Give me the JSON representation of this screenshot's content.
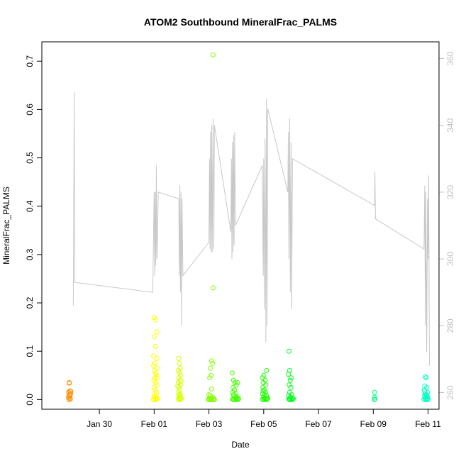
{
  "chart_data": {
    "type": "scatter",
    "title": "ATOM2 Southbound MineralFrac_PALMS",
    "xlabel": "Date",
    "ylabel": "MineralFrac_PALMS",
    "x_ticks": [
      {
        "label": "Jan 30",
        "day": 30
      },
      {
        "label": "Feb 01",
        "day": 32
      },
      {
        "label": "Feb 03",
        "day": 34
      },
      {
        "label": "Feb 05",
        "day": 36
      },
      {
        "label": "Feb 07",
        "day": 38
      },
      {
        "label": "Feb 09",
        "day": 40
      },
      {
        "label": "Feb 11",
        "day": 42
      }
    ],
    "xlim": [
      27.9,
      42.4
    ],
    "ylim": [
      -0.02,
      0.74
    ],
    "y_ticks": [
      0.0,
      0.1,
      0.2,
      0.3,
      0.4,
      0.5,
      0.6,
      0.7
    ],
    "y_tick_labels": [
      "0.0",
      "0.1",
      "0.2",
      "0.3",
      "0.4",
      "0.5",
      "0.6",
      "0.7"
    ],
    "y2lim": [
      255,
      365
    ],
    "y2_ticks": [
      260,
      280,
      300,
      320,
      340,
      360
    ],
    "y2_tick_labels": [
      "260",
      "280",
      "300",
      "320",
      "340",
      "360"
    ],
    "y2_color": "#c0c0c0",
    "line_color": "#c8c8c8",
    "grid": false,
    "legend": "none",
    "series": [
      {
        "color": "#ff8c00",
        "points": [
          [
            28.9,
            0.035
          ],
          [
            28.9,
            0.034
          ],
          [
            28.92,
            0.018
          ],
          [
            28.88,
            0.015
          ],
          [
            28.95,
            0.012
          ],
          [
            28.9,
            0.01
          ],
          [
            28.93,
            0.008
          ],
          [
            28.87,
            0.005
          ],
          [
            28.91,
            0.003
          ],
          [
            28.94,
            0.001
          ],
          [
            28.89,
            0.0
          ],
          [
            28.96,
            0.017
          ]
        ]
      },
      {
        "color": "#ffff00",
        "points": [
          [
            32.0,
            0.17
          ],
          [
            32.05,
            0.165
          ],
          [
            32.1,
            0.14
          ],
          [
            32.0,
            0.13
          ],
          [
            32.05,
            0.11
          ],
          [
            31.98,
            0.09
          ],
          [
            32.1,
            0.085
          ],
          [
            32.02,
            0.075
          ],
          [
            32.12,
            0.065
          ],
          [
            32.0,
            0.06
          ],
          [
            32.08,
            0.05
          ],
          [
            32.03,
            0.045
          ],
          [
            31.99,
            0.04
          ],
          [
            32.06,
            0.035
          ],
          [
            32.1,
            0.03
          ],
          [
            32.0,
            0.025
          ],
          [
            32.04,
            0.02
          ],
          [
            32.09,
            0.015
          ],
          [
            32.02,
            0.012
          ],
          [
            32.07,
            0.008
          ],
          [
            32.0,
            0.005
          ],
          [
            32.05,
            0.003
          ],
          [
            32.1,
            0.001
          ],
          [
            31.97,
            0.0
          ],
          [
            32.03,
            0.0
          ],
          [
            32.08,
            0.0
          ],
          [
            32.12,
            0.002
          ],
          [
            32.06,
            0.055
          ],
          [
            31.98,
            0.07
          ],
          [
            32.11,
            0.045
          ]
        ]
      },
      {
        "color": "#d8ff00",
        "points": [
          [
            32.9,
            0.085
          ],
          [
            32.92,
            0.075
          ],
          [
            32.95,
            0.065
          ],
          [
            32.88,
            0.06
          ],
          [
            32.93,
            0.055
          ],
          [
            32.97,
            0.05
          ],
          [
            32.9,
            0.045
          ],
          [
            32.94,
            0.04
          ],
          [
            32.88,
            0.035
          ],
          [
            32.96,
            0.03
          ],
          [
            32.91,
            0.025
          ],
          [
            32.93,
            0.02
          ],
          [
            32.89,
            0.015
          ],
          [
            32.95,
            0.012
          ],
          [
            32.92,
            0.01
          ],
          [
            32.9,
            0.008
          ],
          [
            32.97,
            0.005
          ],
          [
            32.91,
            0.003
          ],
          [
            32.94,
            0.001
          ],
          [
            32.88,
            0.0
          ],
          [
            32.95,
            0.0
          ],
          [
            32.99,
            0.002
          ],
          [
            32.86,
            0.028
          ],
          [
            32.98,
            0.038
          ]
        ]
      },
      {
        "color": "#80ff00",
        "points": [
          [
            34.15,
            0.713
          ],
          [
            34.15,
            0.231
          ],
          [
            34.1,
            0.08
          ],
          [
            34.13,
            0.075
          ],
          [
            34.05,
            0.065
          ],
          [
            34.08,
            0.05
          ],
          [
            34.03,
            0.045
          ],
          [
            34.1,
            0.022
          ],
          [
            34.0,
            0.01
          ],
          [
            34.05,
            0.008
          ],
          [
            34.12,
            0.005
          ],
          [
            34.02,
            0.003
          ],
          [
            34.08,
            0.001
          ],
          [
            34.0,
            0.0
          ],
          [
            34.04,
            0.0
          ],
          [
            34.1,
            0.0
          ],
          [
            34.15,
            0.0
          ],
          [
            33.98,
            0.0
          ],
          [
            34.2,
            0.0
          ],
          [
            34.18,
            0.002
          ]
        ]
      },
      {
        "color": "#40ff00",
        "points": [
          [
            34.85,
            0.055
          ],
          [
            34.9,
            0.04
          ],
          [
            34.95,
            0.035
          ],
          [
            35.0,
            0.03
          ],
          [
            34.88,
            0.025
          ],
          [
            34.93,
            0.02
          ],
          [
            35.05,
            0.035
          ],
          [
            34.87,
            0.015
          ],
          [
            34.9,
            0.01
          ],
          [
            34.95,
            0.008
          ],
          [
            35.0,
            0.005
          ],
          [
            35.03,
            0.003
          ],
          [
            34.85,
            0.001
          ],
          [
            34.92,
            0.0
          ],
          [
            34.97,
            0.0
          ],
          [
            35.02,
            0.0
          ],
          [
            35.06,
            0.0
          ],
          [
            34.89,
            0.0
          ],
          [
            35.08,
            0.002
          ],
          [
            34.99,
            0.012
          ]
        ]
      },
      {
        "color": "#20ff00",
        "points": [
          [
            36.1,
            0.06
          ],
          [
            36.0,
            0.05
          ],
          [
            35.95,
            0.045
          ],
          [
            36.05,
            0.04
          ],
          [
            35.98,
            0.035
          ],
          [
            36.08,
            0.03
          ],
          [
            35.97,
            0.025
          ],
          [
            36.02,
            0.02
          ],
          [
            36.07,
            0.015
          ],
          [
            35.96,
            0.012
          ],
          [
            36.03,
            0.01
          ],
          [
            36.1,
            0.008
          ],
          [
            36.0,
            0.005
          ],
          [
            36.05,
            0.003
          ],
          [
            36.12,
            0.001
          ],
          [
            35.95,
            0.0
          ],
          [
            36.0,
            0.0
          ],
          [
            36.05,
            0.0
          ],
          [
            36.1,
            0.0
          ],
          [
            36.14,
            0.002
          ],
          [
            35.98,
            0.018
          ]
        ]
      },
      {
        "color": "#00ff20",
        "points": [
          [
            36.92,
            0.1
          ],
          [
            36.95,
            0.06
          ],
          [
            36.9,
            0.052
          ],
          [
            37.0,
            0.045
          ],
          [
            36.97,
            0.04
          ],
          [
            36.93,
            0.03
          ],
          [
            36.99,
            0.025
          ],
          [
            36.95,
            0.015
          ],
          [
            37.02,
            0.01
          ],
          [
            36.9,
            0.008
          ],
          [
            36.97,
            0.005
          ],
          [
            37.05,
            0.003
          ],
          [
            36.92,
            0.001
          ],
          [
            36.96,
            0.0
          ],
          [
            37.0,
            0.0
          ],
          [
            37.04,
            0.0
          ],
          [
            36.94,
            0.0
          ],
          [
            37.08,
            0.002
          ]
        ]
      },
      {
        "color": "#00ff80",
        "points": [
          [
            40.05,
            0.015
          ],
          [
            40.05,
            0.005
          ],
          [
            40.06,
            0.001
          ],
          [
            40.04,
            0.0
          ]
        ]
      },
      {
        "color": "#00ffc0",
        "points": [
          [
            41.9,
            0.047
          ],
          [
            41.93,
            0.045
          ],
          [
            41.88,
            0.028
          ],
          [
            41.95,
            0.025
          ],
          [
            41.86,
            0.02
          ],
          [
            41.98,
            0.015
          ],
          [
            41.9,
            0.012
          ],
          [
            41.92,
            0.01
          ],
          [
            41.87,
            0.008
          ],
          [
            41.96,
            0.006
          ],
          [
            41.89,
            0.004
          ],
          [
            41.94,
            0.002
          ],
          [
            41.91,
            0.001
          ],
          [
            41.85,
            0.0
          ],
          [
            41.92,
            0.0
          ],
          [
            41.97,
            0.0
          ],
          [
            42.0,
            0.0
          ],
          [
            41.99,
            0.005
          ],
          [
            41.88,
            0.017
          ],
          [
            41.95,
            0.009
          ]
        ]
      }
    ],
    "altitude_line": [
      [
        29.05,
        286
      ],
      [
        29.08,
        350
      ],
      [
        29.1,
        293
      ],
      [
        31.95,
        290
      ],
      [
        32.0,
        320
      ],
      [
        32.02,
        295
      ],
      [
        32.04,
        320
      ],
      [
        32.06,
        298
      ],
      [
        32.08,
        328
      ],
      [
        32.1,
        300
      ],
      [
        32.12,
        305
      ],
      [
        32.15,
        320
      ],
      [
        32.9,
        318
      ],
      [
        32.92,
        295
      ],
      [
        32.94,
        322
      ],
      [
        32.96,
        290
      ],
      [
        32.98,
        320
      ],
      [
        33.0,
        280
      ],
      [
        33.02,
        318
      ],
      [
        33.05,
        295
      ],
      [
        34.0,
        305
      ],
      [
        34.02,
        330
      ],
      [
        34.04,
        303
      ],
      [
        34.06,
        338
      ],
      [
        34.08,
        302
      ],
      [
        34.1,
        340
      ],
      [
        34.12,
        302
      ],
      [
        34.15,
        342
      ],
      [
        34.18,
        303
      ],
      [
        34.2,
        340
      ],
      [
        34.8,
        308
      ],
      [
        34.82,
        330
      ],
      [
        34.84,
        300
      ],
      [
        34.86,
        335
      ],
      [
        34.88,
        302
      ],
      [
        34.9,
        337
      ],
      [
        34.92,
        304
      ],
      [
        34.94,
        338
      ],
      [
        34.97,
        310
      ],
      [
        35.95,
        328
      ],
      [
        35.98,
        295
      ],
      [
        36.0,
        330
      ],
      [
        36.02,
        285
      ],
      [
        36.05,
        336
      ],
      [
        36.08,
        275
      ],
      [
        36.1,
        348
      ],
      [
        36.12,
        280
      ],
      [
        36.15,
        345
      ],
      [
        36.88,
        320
      ],
      [
        36.9,
        338
      ],
      [
        36.92,
        300
      ],
      [
        36.95,
        342
      ],
      [
        36.97,
        290
      ],
      [
        37.0,
        335
      ],
      [
        37.02,
        285
      ],
      [
        37.05,
        330
      ],
      [
        40.05,
        316
      ],
      [
        40.06,
        326
      ],
      [
        40.08,
        312
      ],
      [
        41.85,
        303
      ],
      [
        41.88,
        322
      ],
      [
        41.9,
        280
      ],
      [
        41.92,
        320
      ],
      [
        41.95,
        272
      ],
      [
        41.98,
        318
      ],
      [
        42.0,
        300
      ],
      [
        42.02,
        325
      ],
      [
        42.05,
        268
      ]
    ]
  }
}
